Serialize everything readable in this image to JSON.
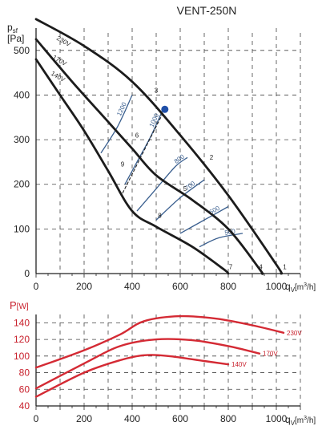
{
  "title": "VENT-250N",
  "chart_data": [
    {
      "type": "line",
      "ylabel_main": "p",
      "ylabel_sub": "sf",
      "ylabel_unit": "[Pa]",
      "xlabel_main": "q",
      "xlabel_sub": "V",
      "xlabel_unit": "[m",
      "xlabel_unit_sup": "3",
      "xlabel_unit_end": "/h]",
      "xlim": [
        0,
        1100
      ],
      "ylim": [
        0,
        550
      ],
      "x_ticks": [
        "0",
        "200",
        "400",
        "600",
        "800",
        "1000"
      ],
      "y_ticks": [
        "0",
        "100",
        "200",
        "300",
        "400",
        "500"
      ],
      "series": [
        {
          "name": "230V",
          "points": [
            [
              0,
              570
            ],
            [
              200,
              510
            ],
            [
              400,
              430
            ],
            [
              600,
              310
            ],
            [
              800,
              175
            ],
            [
              1000,
              20
            ],
            [
              1020,
              0
            ]
          ]
        },
        {
          "name": "170V",
          "points": [
            [
              0,
              525
            ],
            [
              150,
              430
            ],
            [
              300,
              340
            ],
            [
              400,
              280
            ],
            [
              500,
              220
            ],
            [
              650,
              165
            ],
            [
              800,
              100
            ],
            [
              930,
              10
            ],
            [
              940,
              0
            ]
          ]
        },
        {
          "name": "140V",
          "points": [
            [
              0,
              480
            ],
            [
              100,
              400
            ],
            [
              200,
              320
            ],
            [
              300,
              230
            ],
            [
              400,
              140
            ],
            [
              500,
              105
            ],
            [
              650,
              60
            ],
            [
              780,
              10
            ],
            [
              800,
              0
            ]
          ]
        }
      ],
      "rpm_lines": [
        {
          "label": "1200",
          "points": [
            [
              270,
              270
            ],
            [
              340,
              330
            ],
            [
              400,
              400
            ]
          ]
        },
        {
          "label": "1000",
          "points": [
            [
              370,
              200
            ],
            [
              420,
              250
            ],
            [
              480,
              310
            ],
            [
              530,
              370
            ]
          ]
        },
        {
          "label": "800",
          "points": [
            [
              420,
              140
            ],
            [
              500,
              190
            ],
            [
              580,
              240
            ],
            [
              630,
              260
            ]
          ]
        },
        {
          "label": "700",
          "points": [
            [
              500,
              120
            ],
            [
              600,
              170
            ],
            [
              700,
              210
            ]
          ]
        },
        {
          "label": "600",
          "points": [
            [
              600,
              90
            ],
            [
              700,
              120
            ],
            [
              800,
              150
            ]
          ]
        },
        {
          "label": "500",
          "points": [
            [
              680,
              60
            ],
            [
              760,
              80
            ],
            [
              860,
              90
            ]
          ]
        }
      ],
      "duty_line": [
        [
          360,
          180
        ],
        [
          536,
          368
        ]
      ],
      "point_labels": [
        {
          "label": "1",
          "x": 1035,
          "y": 10
        },
        {
          "label": "2",
          "x": 730,
          "y": 255
        },
        {
          "label": "3",
          "x": 500,
          "y": 405
        },
        {
          "label": "4",
          "x": 935,
          "y": 10
        },
        {
          "label": "5",
          "x": 620,
          "y": 185
        },
        {
          "label": "6",
          "x": 420,
          "y": 305
        },
        {
          "label": "7",
          "x": 810,
          "y": 10
        },
        {
          "label": "8",
          "x": 515,
          "y": 125
        },
        {
          "label": "9",
          "x": 360,
          "y": 240
        }
      ],
      "operating_point": {
        "x": 536,
        "y": 368
      }
    },
    {
      "type": "line",
      "ylabel_main": "P",
      "ylabel_unit": "[W]",
      "xlabel_main": "q",
      "xlabel_sub": "V",
      "xlabel_unit": "[m",
      "xlabel_unit_sup": "3",
      "xlabel_unit_end": "/h]",
      "xlim": [
        0,
        1100
      ],
      "ylim": [
        40,
        150
      ],
      "x_ticks": [
        "0",
        "200",
        "400",
        "600",
        "800",
        "1000"
      ],
      "y_ticks": [
        "40",
        "60",
        "80",
        "100",
        "120",
        "140"
      ],
      "series": [
        {
          "name": "230V",
          "points": [
            [
              0,
              86
            ],
            [
              200,
              107
            ],
            [
              350,
              126
            ],
            [
              450,
              142
            ],
            [
              600,
              148
            ],
            [
              750,
              145
            ],
            [
              900,
              137
            ],
            [
              1030,
              128
            ]
          ]
        },
        {
          "name": "170V",
          "points": [
            [
              0,
              61
            ],
            [
              200,
              91
            ],
            [
              350,
              112
            ],
            [
              500,
              120
            ],
            [
              650,
              119
            ],
            [
              800,
              112
            ],
            [
              930,
              103
            ]
          ]
        },
        {
          "name": "140V",
          "points": [
            [
              0,
              51
            ],
            [
              200,
              80
            ],
            [
              350,
              95
            ],
            [
              450,
              101
            ],
            [
              550,
              100
            ],
            [
              700,
              94
            ],
            [
              800,
              90
            ]
          ]
        }
      ]
    }
  ]
}
